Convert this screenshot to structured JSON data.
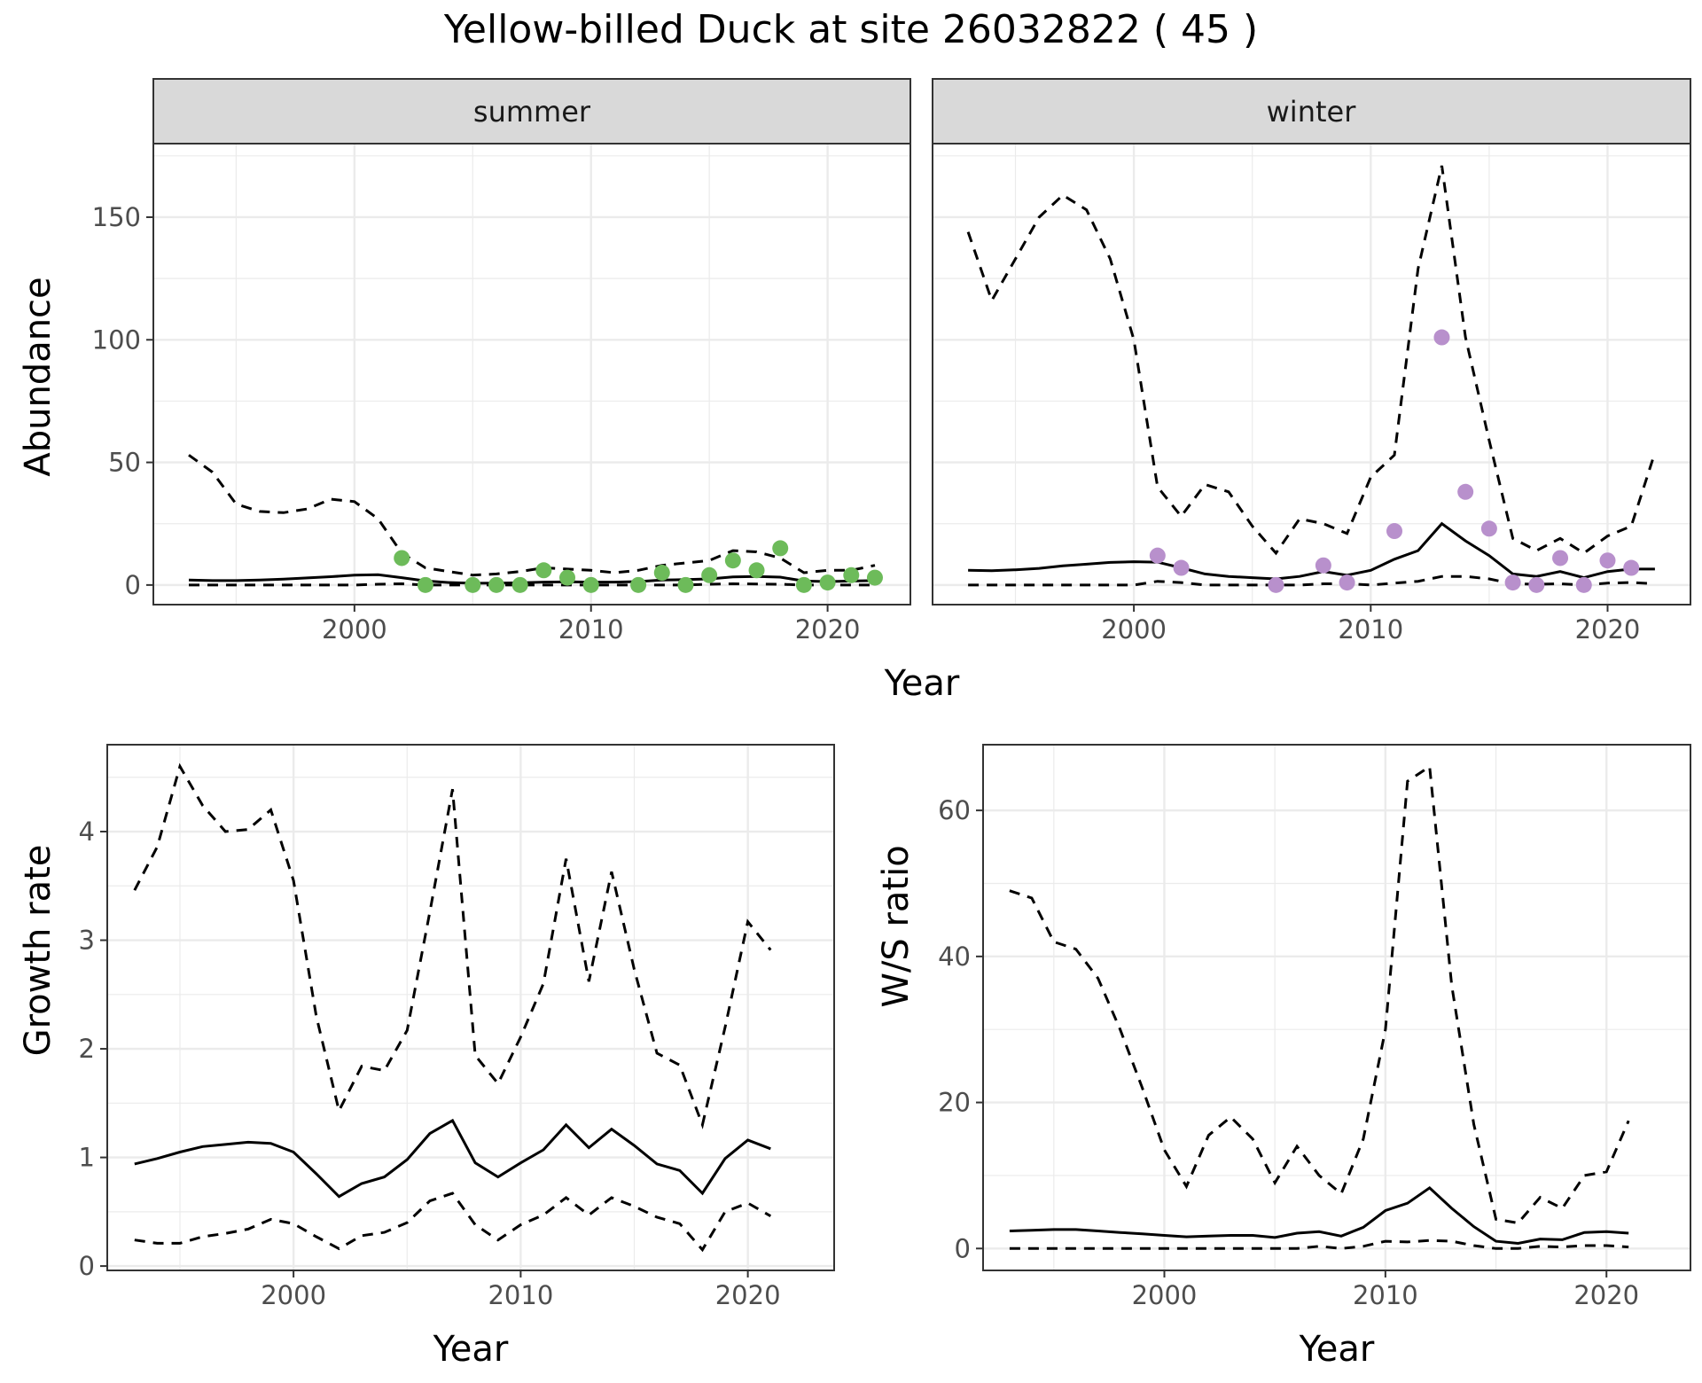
{
  "figure": {
    "title": "Yellow-billed Duck at site 26032822 ( 45 )"
  },
  "colors": {
    "summer_points": "#6dbb5a",
    "winter_points": "#b890cc",
    "lines": "#000000",
    "strip": "#d9d9d9"
  },
  "chart_data": [
    {
      "id": "abundance",
      "type": "line",
      "facets": [
        "summer",
        "winter"
      ],
      "xlabel": "Year",
      "ylabel": "Abundance",
      "xlim": [
        1991.5,
        2023.5
      ],
      "ylim": [
        -8,
        180
      ],
      "xticks": [
        2000,
        2010,
        2020
      ],
      "yticks": [
        0,
        50,
        100,
        150
      ],
      "panels": [
        {
          "strip": "summer",
          "point_color": "#6dbb5a",
          "x": [
            1993,
            1994,
            1995,
            1996,
            1997,
            1998,
            1999,
            2000,
            2001,
            2002,
            2003,
            2004,
            2005,
            2006,
            2007,
            2008,
            2009,
            2010,
            2011,
            2012,
            2013,
            2014,
            2015,
            2016,
            2017,
            2018,
            2019,
            2020,
            2021,
            2022
          ],
          "median": [
            2,
            1.8,
            1.8,
            2,
            2.4,
            2.9,
            3.4,
            4,
            4.2,
            3,
            1.7,
            1,
            0.7,
            0.8,
            0.9,
            1.2,
            1.3,
            1.2,
            1.2,
            1.4,
            2,
            2.2,
            2.5,
            3.3,
            3.5,
            3.2,
            1.6,
            1.4,
            1.6,
            1.8
          ],
          "upper": [
            53,
            46,
            33,
            30,
            29.5,
            31,
            35,
            34,
            27,
            13,
            7,
            5.5,
            4,
            4.5,
            5.5,
            7,
            6.5,
            6,
            5,
            6,
            8,
            9,
            10,
            14,
            13.5,
            11,
            5,
            6,
            6,
            8
          ],
          "lower": [
            0,
            0,
            0,
            0,
            0,
            0,
            0,
            0,
            0.3,
            0.5,
            0,
            0,
            0,
            0,
            0,
            0,
            0,
            0,
            0,
            0,
            0,
            0,
            0.3,
            0.5,
            0.4,
            0.3,
            0,
            0,
            0,
            0
          ],
          "points": {
            "x": [
              2002,
              2003,
              2005,
              2006,
              2007,
              2008,
              2009,
              2010,
              2012,
              2013,
              2014,
              2015,
              2016,
              2017,
              2018,
              2019,
              2020,
              2021,
              2022
            ],
            "y": [
              11,
              0,
              0,
              0,
              0,
              6,
              3,
              0,
              0,
              5,
              0,
              4,
              10,
              6,
              15,
              0,
              1,
              4,
              3
            ]
          }
        },
        {
          "strip": "winter",
          "point_color": "#b890cc",
          "x": [
            1993,
            1994,
            1995,
            1996,
            1997,
            1998,
            1999,
            2000,
            2001,
            2002,
            2003,
            2004,
            2005,
            2006,
            2007,
            2008,
            2009,
            2010,
            2011,
            2012,
            2013,
            2014,
            2015,
            2016,
            2017,
            2018,
            2019,
            2020,
            2021,
            2022
          ],
          "median": [
            6,
            5.8,
            6.2,
            6.8,
            7.8,
            8.5,
            9.2,
            9.5,
            9.3,
            7,
            4.5,
            3.5,
            3,
            2.5,
            3.5,
            5.5,
            4,
            6,
            10.5,
            14,
            25,
            18,
            12,
            4.5,
            3.5,
            5.5,
            3,
            5.5,
            6.5,
            6.5
          ],
          "upper": [
            144,
            116,
            133,
            150,
            159,
            153,
            133,
            100,
            40,
            28,
            41,
            38,
            24,
            13,
            27,
            25,
            21,
            44,
            53,
            129,
            171,
            101,
            59,
            19,
            14,
            19,
            13,
            20,
            24,
            54
          ],
          "lower": [
            0,
            0,
            0,
            0,
            0,
            0,
            0,
            0,
            1.5,
            1,
            0,
            0,
            0,
            0,
            0,
            0.5,
            0.5,
            0,
            0.8,
            1.5,
            3.5,
            3.5,
            2.5,
            0.5,
            0.3,
            0.5,
            0,
            0.8,
            1,
            0.5
          ],
          "points": {
            "x": [
              2001,
              2002,
              2006,
              2008,
              2009,
              2011,
              2013,
              2014,
              2015,
              2016,
              2017,
              2018,
              2019,
              2020,
              2021
            ],
            "y": [
              12,
              7,
              0,
              8,
              1,
              22,
              101,
              38,
              23,
              1,
              0,
              11,
              0,
              10,
              7
            ]
          }
        }
      ]
    },
    {
      "id": "growth",
      "type": "line",
      "xlabel": "Year",
      "ylabel": "Growth rate",
      "xlim": [
        1991.8,
        2023.8
      ],
      "ylim": [
        -0.04,
        4.8
      ],
      "xticks": [
        2000,
        2010,
        2020
      ],
      "yticks": [
        0,
        1,
        2,
        3,
        4
      ],
      "x": [
        1993,
        1994,
        1995,
        1996,
        1997,
        1998,
        1999,
        2000,
        2001,
        2002,
        2003,
        2004,
        2005,
        2006,
        2007,
        2008,
        2009,
        2010,
        2011,
        2012,
        2013,
        2014,
        2015,
        2016,
        2017,
        2018,
        2019,
        2020,
        2021
      ],
      "median": [
        0.94,
        0.99,
        1.05,
        1.1,
        1.12,
        1.14,
        1.13,
        1.05,
        0.85,
        0.64,
        0.76,
        0.82,
        0.98,
        1.22,
        1.34,
        0.95,
        0.82,
        0.95,
        1.07,
        1.3,
        1.09,
        1.26,
        1.11,
        0.94,
        0.88,
        0.67,
        0.99,
        1.16,
        1.08
      ],
      "upper": [
        3.46,
        3.86,
        4.6,
        4.24,
        4.0,
        4.02,
        4.2,
        3.55,
        2.3,
        1.43,
        1.84,
        1.8,
        2.17,
        3.26,
        4.39,
        1.94,
        1.68,
        2.11,
        2.6,
        3.75,
        2.62,
        3.63,
        2.73,
        1.96,
        1.85,
        1.3,
        2.2,
        3.17,
        2.91
      ],
      "lower": [
        0.24,
        0.21,
        0.21,
        0.27,
        0.3,
        0.34,
        0.43,
        0.39,
        0.27,
        0.16,
        0.28,
        0.31,
        0.4,
        0.6,
        0.67,
        0.38,
        0.24,
        0.38,
        0.47,
        0.63,
        0.47,
        0.63,
        0.55,
        0.45,
        0.39,
        0.15,
        0.5,
        0.58,
        0.46
      ]
    },
    {
      "id": "ratio",
      "type": "line",
      "xlabel": "Year",
      "ylabel": "W/S ratio",
      "xlim": [
        1991.8,
        2023.8
      ],
      "ylim": [
        -3,
        69
      ],
      "xticks": [
        2000,
        2010,
        2020
      ],
      "yticks": [
        0,
        20,
        40,
        60
      ],
      "x": [
        1993,
        1994,
        1995,
        1996,
        1997,
        1998,
        1999,
        2000,
        2001,
        2002,
        2003,
        2004,
        2005,
        2006,
        2007,
        2008,
        2009,
        2010,
        2011,
        2012,
        2013,
        2014,
        2015,
        2016,
        2017,
        2018,
        2019,
        2020,
        2021
      ],
      "median": [
        2.4,
        2.5,
        2.6,
        2.6,
        2.4,
        2.2,
        2,
        1.8,
        1.6,
        1.7,
        1.8,
        1.8,
        1.5,
        2.1,
        2.3,
        1.7,
        2.9,
        5.2,
        6.2,
        8.3,
        5.5,
        3,
        1,
        0.7,
        1.3,
        1.2,
        2.2,
        2.3,
        2.1
      ],
      "upper": [
        49,
        48,
        42,
        41,
        37,
        30,
        22,
        13.5,
        8.5,
        15.5,
        18,
        15,
        9,
        14,
        10,
        7.5,
        15,
        30,
        64,
        66,
        36,
        17,
        4,
        3.5,
        7,
        5.5,
        10,
        10.5,
        17.5
      ],
      "lower": [
        0,
        0,
        0,
        0,
        0,
        0,
        0,
        0,
        0,
        0,
        0,
        0,
        0,
        0,
        0.3,
        0,
        0.3,
        1,
        0.9,
        1.1,
        1,
        0.4,
        0,
        0,
        0.3,
        0.2,
        0.4,
        0.4,
        0.2
      ]
    }
  ]
}
